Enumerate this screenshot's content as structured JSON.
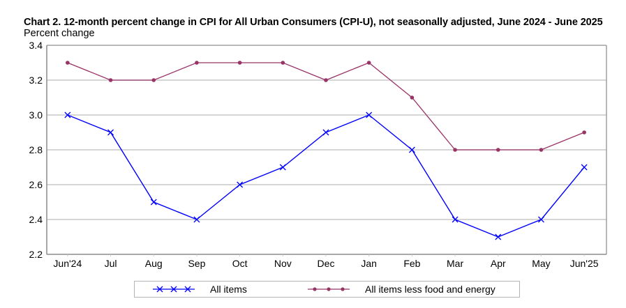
{
  "header": {
    "title": "Chart 2. 12-month percent change in CPI for All Urban Consumers (CPI-U), not seasonally adjusted, June 2024 - June 2025",
    "y_axis_label": "Percent change"
  },
  "chart_data": {
    "type": "line",
    "title": "Chart 2. 12-month percent change in CPI for All Urban Consumers (CPI-U), not seasonally adjusted, June 2024 - June 2025",
    "xlabel": "",
    "ylabel": "Percent change",
    "categories": [
      "Jun'24",
      "Jul",
      "Aug",
      "Sep",
      "Oct",
      "Nov",
      "Dec",
      "Jan",
      "Feb",
      "Mar",
      "Apr",
      "May",
      "Jun'25"
    ],
    "ylim": [
      2.2,
      3.4
    ],
    "yticks": [
      "2.2",
      "2.4",
      "2.6",
      "2.8",
      "3.0",
      "3.2",
      "3.4"
    ],
    "grid": true,
    "legend_position": "bottom",
    "series": [
      {
        "name": "All items",
        "color": "#0000ff",
        "marker": "x",
        "values": [
          3.0,
          2.9,
          2.5,
          2.4,
          2.6,
          2.7,
          2.9,
          3.0,
          2.8,
          2.4,
          2.3,
          2.4,
          2.7
        ]
      },
      {
        "name": "All items less food and energy",
        "color": "#993366",
        "marker": "circle",
        "values": [
          3.3,
          3.2,
          3.2,
          3.3,
          3.3,
          3.3,
          3.2,
          3.3,
          3.1,
          2.8,
          2.8,
          2.8,
          2.9
        ]
      }
    ]
  },
  "legend": {
    "items": [
      {
        "label": "All items"
      },
      {
        "label": "All items less food and energy"
      }
    ]
  }
}
